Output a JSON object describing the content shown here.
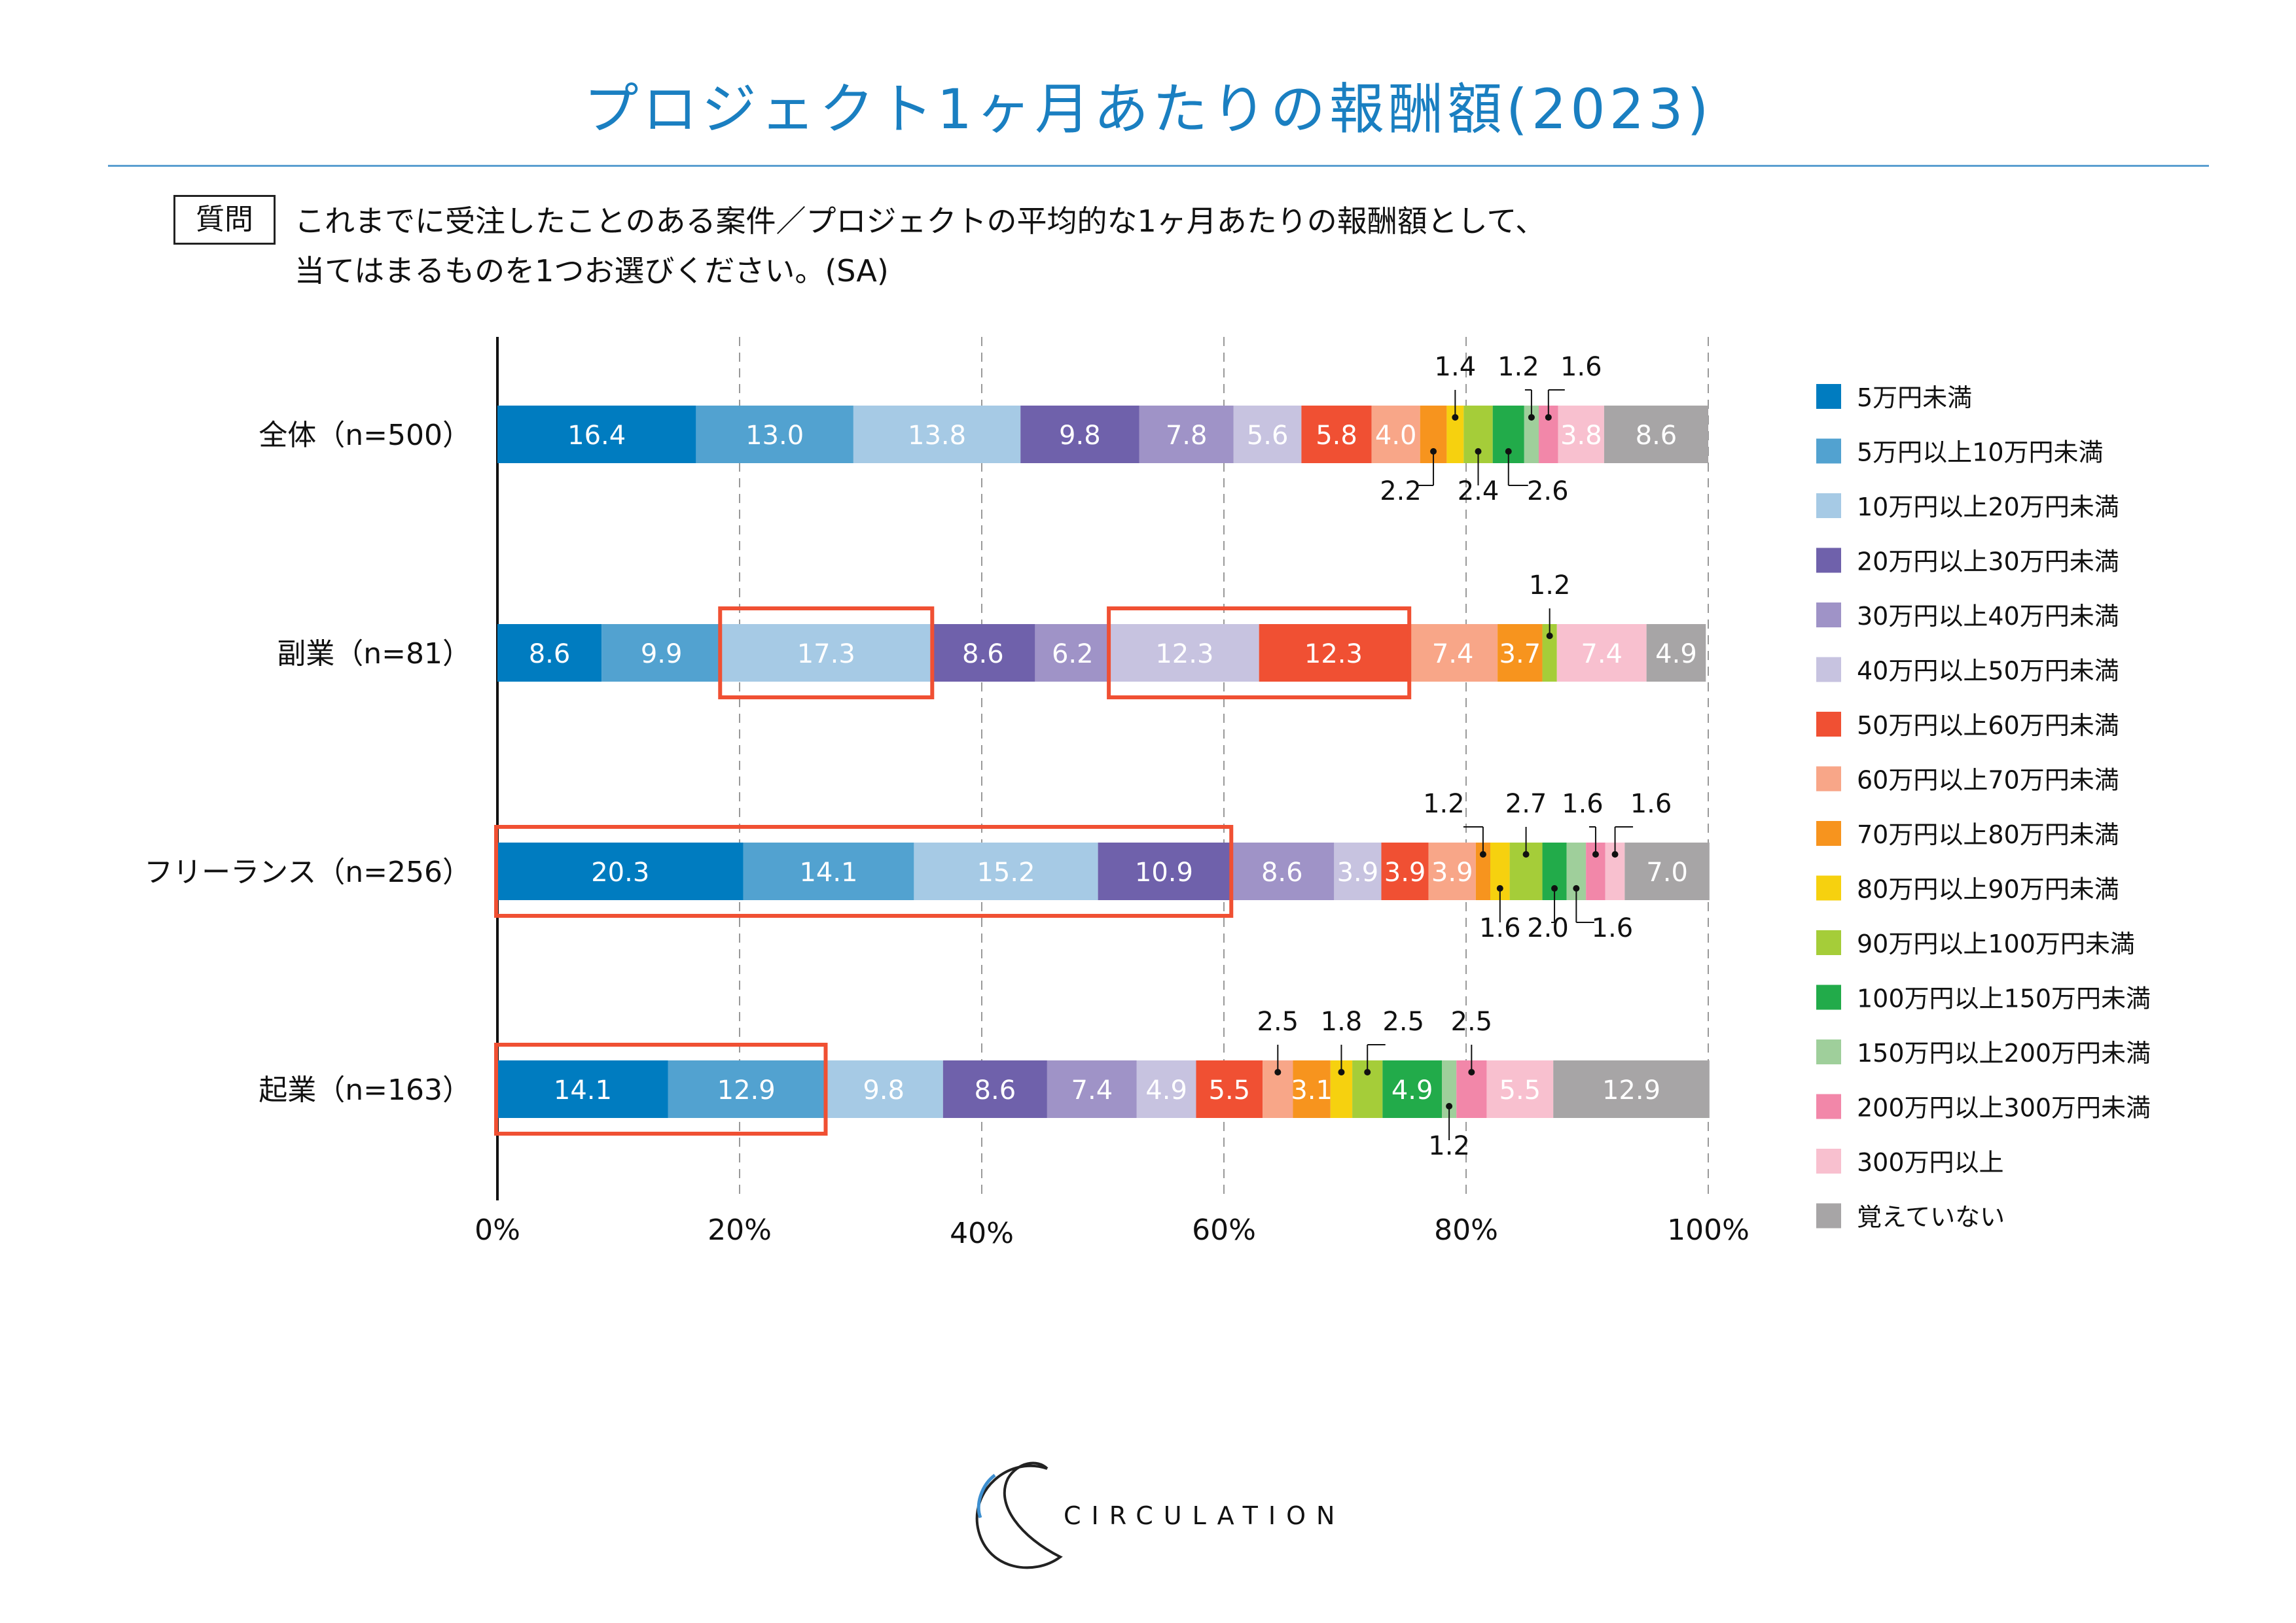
{
  "title": "プロジェクト1ヶ月あたりの報酬額(2023)",
  "question": {
    "label": "質問",
    "text": "これまでに受注したことのある案件／プロジェクトの平均的な1ヶ月あたりの報酬額として、\n当てはまるものを1つお選びください。(SA)"
  },
  "logo": {
    "text": "CIRCULATION"
  },
  "chart_data": {
    "type": "bar",
    "orientation": "horizontal",
    "stacked": true,
    "percent": true,
    "title": "プロジェクト1ヶ月あたりの報酬額(2023)",
    "categories": [
      "全体（n=500）",
      "副業（n=81）",
      "フリーランス（n=256）",
      "起業（n=163）"
    ],
    "xlim": [
      0,
      100
    ],
    "x_ticks": [
      "0%",
      "20%",
      "40%",
      "60%",
      "80%",
      "100%"
    ],
    "grid": "vertical-dashed",
    "legend_position": "right",
    "series": [
      {
        "name": "5万円未満",
        "color": "#007cc0",
        "values": [
          16.4,
          8.6,
          20.3,
          14.1
        ]
      },
      {
        "name": "5万円以上10万円未満",
        "color": "#52a2d0",
        "values": [
          13.0,
          9.9,
          14.1,
          12.9
        ]
      },
      {
        "name": "10万円以上20万円未満",
        "color": "#a6cae5",
        "values": [
          13.8,
          17.3,
          15.2,
          9.8
        ]
      },
      {
        "name": "20万円以上30万円未満",
        "color": "#6f61ab",
        "values": [
          9.8,
          8.6,
          10.9,
          8.6
        ]
      },
      {
        "name": "30万円以上40万円未満",
        "color": "#9f93c7",
        "values": [
          7.8,
          6.2,
          8.6,
          7.4
        ]
      },
      {
        "name": "40万円以上50万円未満",
        "color": "#c7c3e0",
        "values": [
          5.6,
          12.3,
          3.9,
          4.9
        ]
      },
      {
        "name": "50万円以上60万円未満",
        "color": "#f05033",
        "values": [
          5.8,
          12.3,
          3.9,
          5.5
        ]
      },
      {
        "name": "60万円以上70万円未満",
        "color": "#f8a688",
        "values": [
          4.0,
          7.4,
          3.9,
          2.5
        ]
      },
      {
        "name": "70万円以上80万円未満",
        "color": "#f7941e",
        "values": [
          2.2,
          3.7,
          1.2,
          3.1
        ]
      },
      {
        "name": "80万円以上90万円未満",
        "color": "#f6d10f",
        "values": [
          1.4,
          0,
          1.6,
          1.8
        ]
      },
      {
        "name": "90万円以上100万円未満",
        "color": "#a5cd39",
        "values": [
          2.4,
          1.2,
          2.7,
          2.5
        ]
      },
      {
        "name": "100万円以上150万円未満",
        "color": "#22ab4a",
        "values": [
          2.6,
          0,
          2.0,
          4.9
        ]
      },
      {
        "name": "150万円以上200万円未満",
        "color": "#9fcf9b",
        "values": [
          1.2,
          0,
          1.6,
          1.2
        ]
      },
      {
        "name": "200万円以上300万円未満",
        "color": "#f287a9",
        "values": [
          1.6,
          0,
          1.6,
          2.5
        ]
      },
      {
        "name": "300万円以上",
        "color": "#f8c0cf",
        "values": [
          3.8,
          7.4,
          1.6,
          5.5
        ]
      },
      {
        "name": "覚えていない",
        "color": "#a7a5a6",
        "values": [
          8.6,
          4.9,
          7.0,
          12.9
        ]
      }
    ],
    "highlights": [
      {
        "category": "副業（n=81）",
        "series": [
          "10万円以上20万円未満"
        ],
        "color": "#f05033"
      },
      {
        "category": "副業（n=81）",
        "series": [
          "40万円以上50万円未満",
          "50万円以上60万円未満"
        ],
        "color": "#f05033"
      },
      {
        "category": "フリーランス（n=256）",
        "series": [
          "5万円未満",
          "5万円以上10万円未満",
          "10万円以上20万円未満",
          "20万円以上30万円未満"
        ],
        "color": "#f05033"
      },
      {
        "category": "起業（n=163）",
        "series": [
          "5万円未満",
          "5万円以上10万円未満"
        ],
        "color": "#f05033"
      }
    ]
  }
}
